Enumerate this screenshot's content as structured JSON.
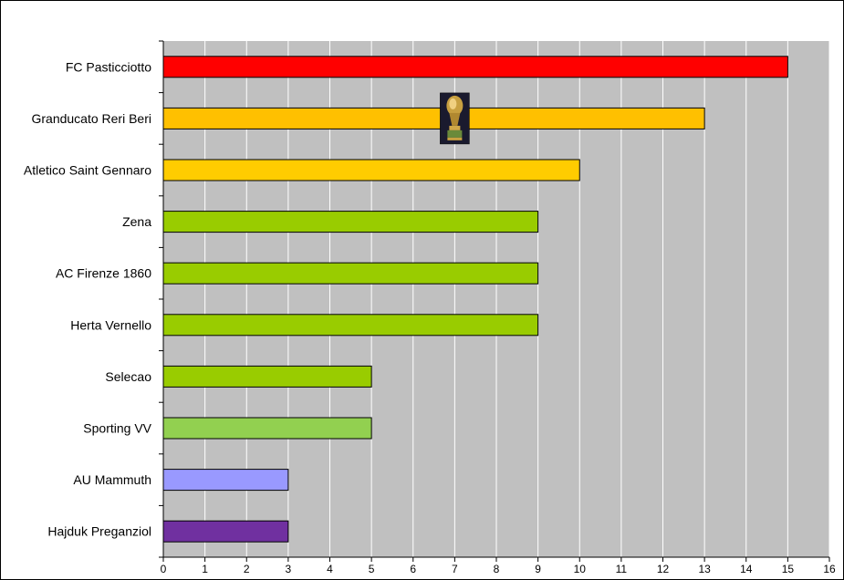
{
  "chart_data": {
    "type": "bar",
    "orientation": "horizontal",
    "title": "",
    "xlabel": "",
    "ylabel": "",
    "xlim": [
      0,
      16
    ],
    "grid": "vertical",
    "legend": "none",
    "categories": [
      "FC Pasticciotto",
      "Granducato Reri Beri",
      "Atletico Saint Gennaro",
      "Zena",
      "AC Firenze 1860",
      "Herta Vernello",
      "Selecao",
      "Sporting VV",
      "AU Mammuth",
      "Hajduk Preganziol"
    ],
    "values": [
      15,
      13,
      10,
      9,
      9,
      9,
      5,
      5,
      3,
      3
    ],
    "bar_colors": [
      "#ff0000",
      "#ffc000",
      "#ffcc00",
      "#99cc00",
      "#99cc00",
      "#99cc00",
      "#99cc00",
      "#92d050",
      "#9999ff",
      "#7030a0"
    ],
    "x_ticks": [
      "0",
      "1",
      "2",
      "3",
      "4",
      "5",
      "6",
      "7",
      "8",
      "9",
      "10",
      "11",
      "12",
      "13",
      "14",
      "15",
      "16"
    ],
    "plot_background": "#c0c0c0",
    "gridline_color": "#ffffff",
    "trophy_icon": "world-cup-trophy-icon"
  }
}
